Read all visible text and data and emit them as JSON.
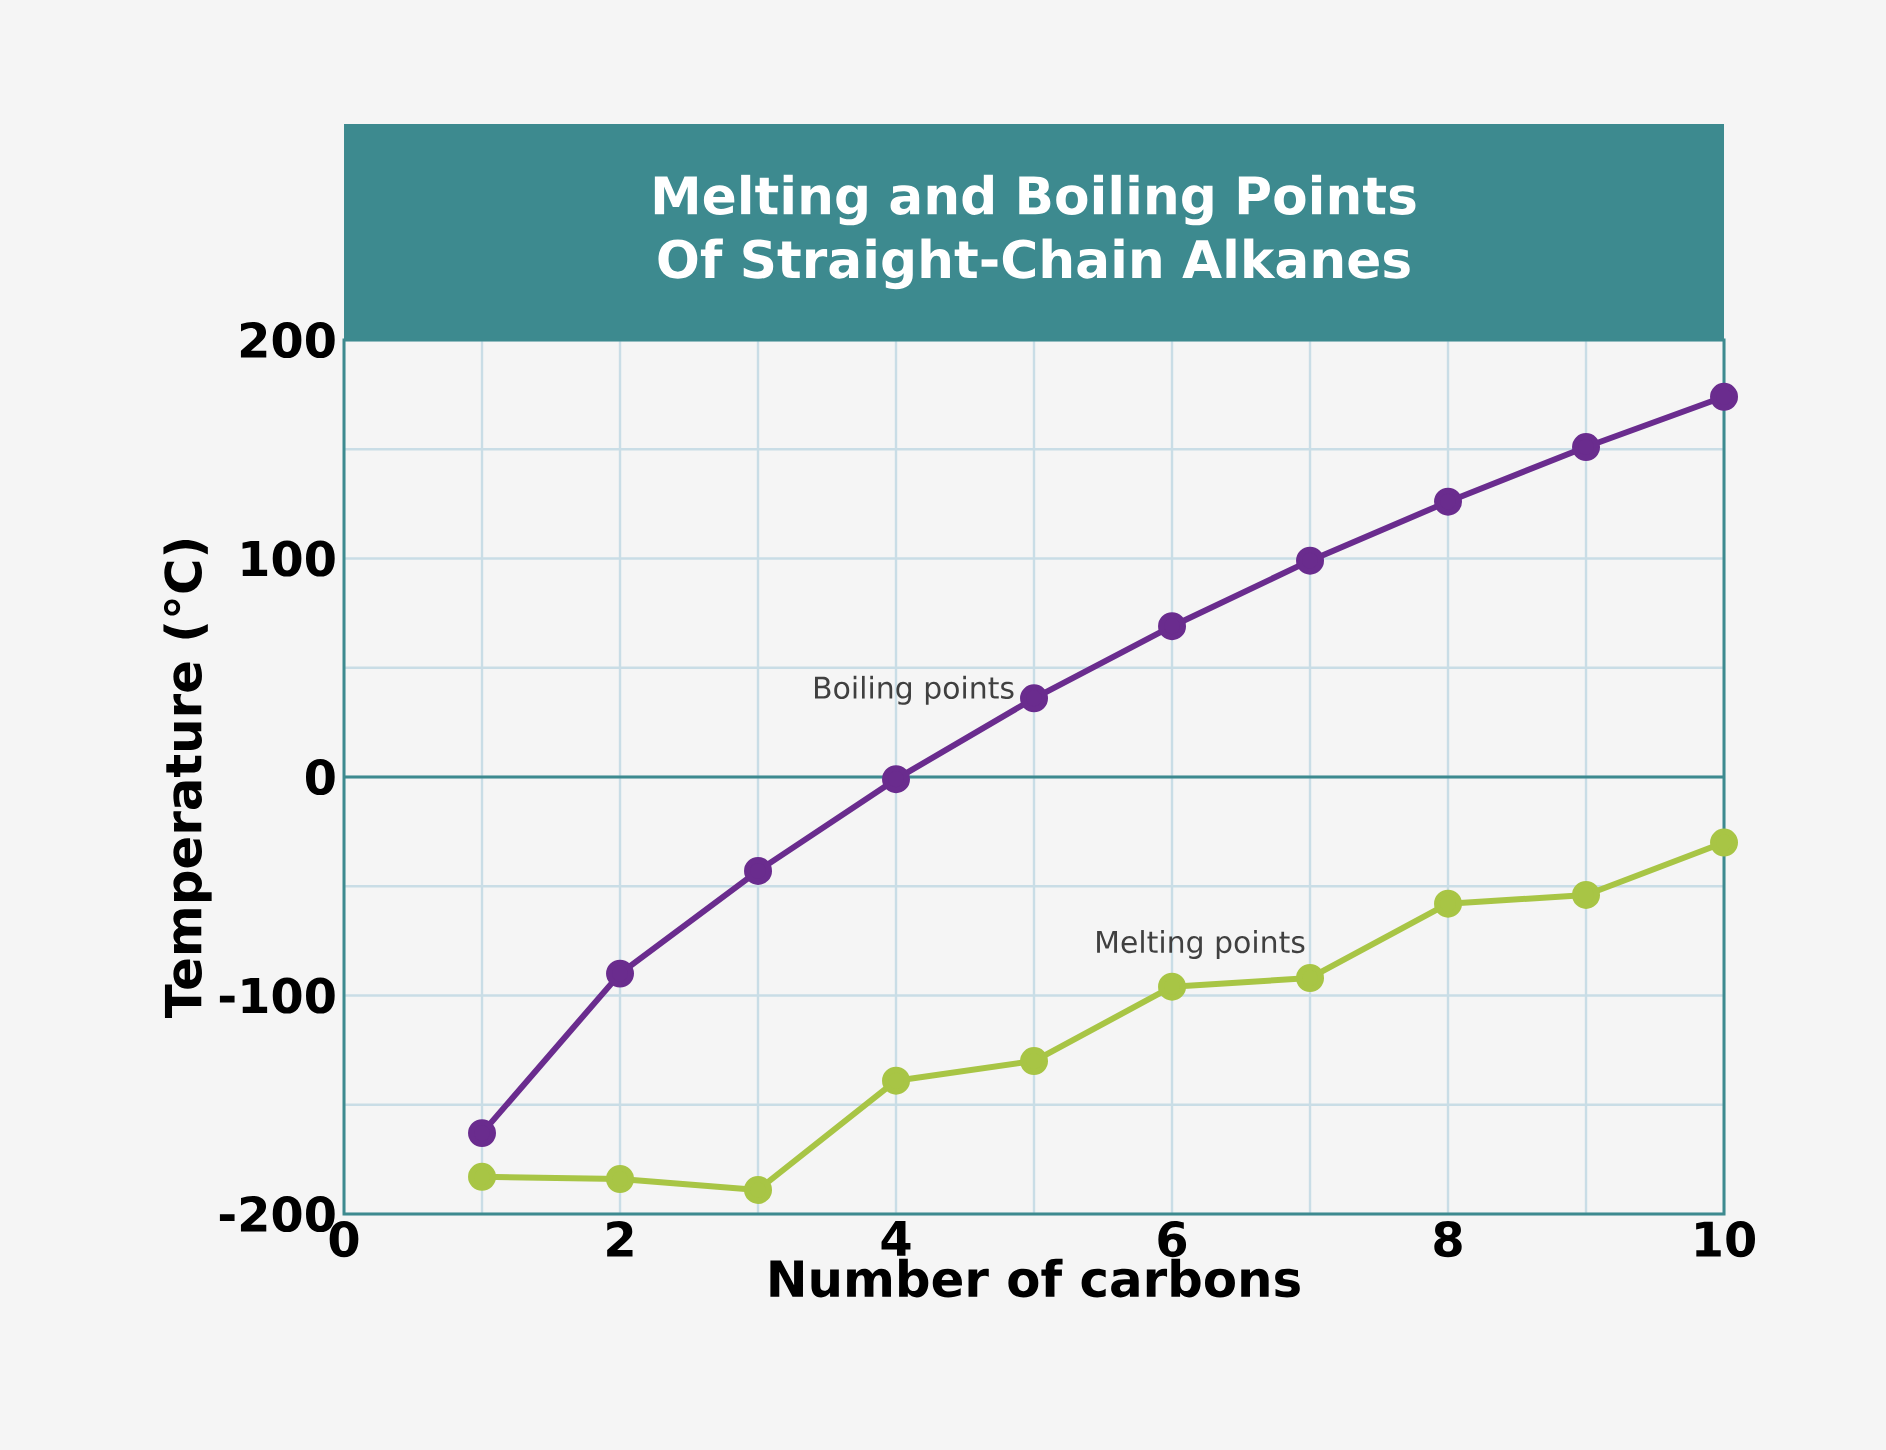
{
  "chart_data": {
    "type": "line",
    "title": "Melting and Boiling Points\nOf Straight-Chain Alkanes",
    "xlabel": "Number of carbons",
    "ylabel": "Temperature (°C)",
    "x": [
      1,
      2,
      3,
      4,
      5,
      6,
      7,
      8,
      9,
      10
    ],
    "series": [
      {
        "name": "Boiling points",
        "color": "#6a2c8e",
        "values": [
          -163,
          -90,
          -43,
          -1,
          36,
          69,
          99,
          126,
          151,
          174
        ]
      },
      {
        "name": "Melting points",
        "color": "#a8c545",
        "values": [
          -183,
          -184,
          -189,
          -139,
          -130,
          -96,
          -92,
          -58,
          -54,
          -30
        ]
      }
    ],
    "xlim": [
      0,
      10
    ],
    "ylim": [
      -200,
      200
    ],
    "xticks": [
      0,
      2,
      4,
      6,
      8,
      10
    ],
    "yticks": [
      -200,
      -100,
      0,
      100,
      200
    ],
    "grid": true,
    "marker": "circle",
    "line_style": "solid",
    "ref_lines": [
      {
        "axis": "y",
        "value": 0,
        "color": "#3d8a8f"
      }
    ]
  }
}
